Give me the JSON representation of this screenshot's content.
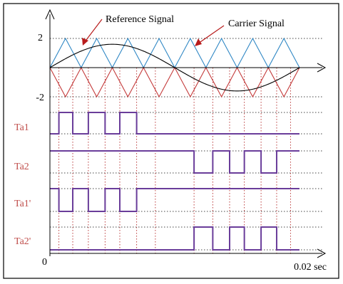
{
  "chart_data": {
    "type": "line",
    "time_unit": "sec",
    "x_range": [
      0,
      0.02
    ],
    "x_end_label": "0.02 sec",
    "origin_label": "0",
    "carrier_cycles": 8,
    "top_panel": {
      "y_range": [
        -2,
        2
      ],
      "tick_labels": [
        "2",
        "-2"
      ],
      "carrier_peak": 2,
      "reference_amplitude": 1.6,
      "series": [
        {
          "name": "Reference Signal",
          "kind": "sine",
          "color": "#000000"
        },
        {
          "name": "Carrier Signal",
          "kind": "triangle",
          "phase": "positive",
          "color": "#2d86c4"
        },
        {
          "name": "Carrier Signal",
          "kind": "triangle",
          "phase": "negative",
          "color": "#c43a3a"
        }
      ]
    },
    "gate_panels": [
      {
        "label": "Ta1",
        "t": [
          0,
          0.00072,
          0.00183,
          0.00308,
          0.00442,
          0.0056,
          0.00695,
          0.00845,
          0.02
        ],
        "level": [
          0,
          1,
          0,
          1,
          0,
          1,
          0,
          0
        ]
      },
      {
        "label": "Ta2",
        "t": [
          0,
          0.01155,
          0.01305,
          0.0144,
          0.01558,
          0.01692,
          0.01817,
          0.01928,
          0.02
        ],
        "level": [
          1,
          0,
          1,
          0,
          1,
          0,
          1,
          1
        ]
      },
      {
        "label": "Ta1'",
        "t": [
          0,
          0.00072,
          0.00183,
          0.00308,
          0.00442,
          0.0056,
          0.00695,
          0.00845,
          0.02
        ],
        "level": [
          1,
          0,
          1,
          0,
          1,
          0,
          1,
          1
        ]
      },
      {
        "label": "Ta2'",
        "t": [
          0,
          0.01155,
          0.01305,
          0.0144,
          0.01558,
          0.01692,
          0.01817,
          0.01928,
          0.02
        ],
        "level": [
          0,
          1,
          0,
          1,
          0,
          1,
          0,
          0
        ]
      }
    ],
    "annotations": [
      {
        "text": "Reference Signal",
        "color": "#000000",
        "arrow_color": "#b81c1c"
      },
      {
        "text": "Carrier Signal",
        "color": "#000000",
        "arrow_color": "#b81c1c"
      }
    ],
    "colors": {
      "gate_line": "#6a3d9a",
      "gate_label": "#c0504d",
      "grid_dotted": "#444444",
      "switch_dotted": "#b42828"
    }
  }
}
